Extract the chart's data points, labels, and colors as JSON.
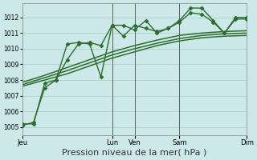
{
  "background_color": "#cce8e8",
  "grid_color": "#aacccc",
  "line_color": "#2d6e2d",
  "marker_color": "#2d6e2d",
  "xlabel": "Pression niveau de la mer( hPa )",
  "ylim": [
    1004.5,
    1012.9
  ],
  "yticks": [
    1005,
    1006,
    1007,
    1008,
    1009,
    1010,
    1011,
    1012
  ],
  "xtick_labels": [
    "Jeu",
    "",
    "",
    "",
    "Lun",
    "Ven",
    "",
    "Sam",
    "",
    "",
    "Dim"
  ],
  "xlabel_fontsize": 8,
  "series": [
    {
      "x": [
        0,
        0.5,
        1.0,
        1.5,
        2.0,
        2.5,
        3.0,
        3.5,
        4.0,
        4.5,
        5.0,
        5.5,
        6.0,
        6.5,
        7.0,
        7.5,
        8.0,
        8.5,
        9.0,
        9.5,
        10.0
      ],
      "y": [
        1005.1,
        1005.3,
        1007.5,
        1008.0,
        1009.3,
        1010.3,
        1010.4,
        1010.2,
        1011.5,
        1011.5,
        1011.2,
        1011.8,
        1011.0,
        1011.3,
        1011.8,
        1012.6,
        1012.6,
        1011.8,
        1011.0,
        1012.0,
        1012.0
      ],
      "marker": "D",
      "markersize": 2.5,
      "linewidth": 1.0,
      "zorder": 4
    },
    {
      "x": [
        0,
        0.5,
        1.0,
        1.5,
        2.0,
        2.5,
        3.0,
        3.5,
        4.0,
        4.5,
        5.0,
        5.5,
        6.0,
        6.5,
        7.0,
        7.5,
        8.0,
        8.5,
        9.0,
        9.5,
        10.0
      ],
      "y": [
        1005.2,
        1005.2,
        1007.8,
        1008.0,
        1010.3,
        1010.4,
        1010.3,
        1008.2,
        1011.5,
        1010.8,
        1011.5,
        1011.3,
        1011.1,
        1011.3,
        1011.7,
        1012.3,
        1012.2,
        1011.7,
        1011.0,
        1011.9,
        1011.9
      ],
      "marker": "D",
      "markersize": 2.5,
      "linewidth": 1.0,
      "zorder": 4
    },
    {
      "x": [
        0,
        1.0,
        2.0,
        3.0,
        4.0,
        5.0,
        6.0,
        7.0,
        8.0,
        9.0,
        10.0
      ],
      "y": [
        1007.85,
        1008.3,
        1008.8,
        1009.3,
        1009.8,
        1010.2,
        1010.55,
        1010.85,
        1011.0,
        1011.1,
        1011.15
      ],
      "marker": "",
      "markersize": 0,
      "linewidth": 1.1,
      "zorder": 2
    },
    {
      "x": [
        0,
        1.0,
        2.0,
        3.0,
        4.0,
        5.0,
        6.0,
        7.0,
        8.0,
        9.0,
        10.0
      ],
      "y": [
        1007.7,
        1008.15,
        1008.6,
        1009.1,
        1009.6,
        1010.0,
        1010.35,
        1010.65,
        1010.85,
        1010.95,
        1011.0
      ],
      "marker": "",
      "markersize": 0,
      "linewidth": 1.1,
      "zorder": 2
    },
    {
      "x": [
        0,
        1.0,
        2.0,
        3.0,
        4.0,
        5.0,
        6.0,
        7.0,
        8.0,
        9.0,
        10.0
      ],
      "y": [
        1007.6,
        1008.0,
        1008.4,
        1008.9,
        1009.4,
        1009.8,
        1010.2,
        1010.5,
        1010.7,
        1010.8,
        1010.85
      ],
      "marker": "",
      "markersize": 0,
      "linewidth": 1.1,
      "zorder": 2
    }
  ],
  "vlines": [
    4.0,
    5.0,
    7.0
  ],
  "vline_color": "#556655",
  "vline_linewidth": 0.7,
  "xlim": [
    0,
    10.0
  ],
  "xtick_positions": [
    0,
    4.0,
    5.0,
    7.0,
    10.0
  ],
  "xtick_display": [
    "Jeu",
    "Lun",
    "Ven",
    "Sam",
    "Dim"
  ]
}
